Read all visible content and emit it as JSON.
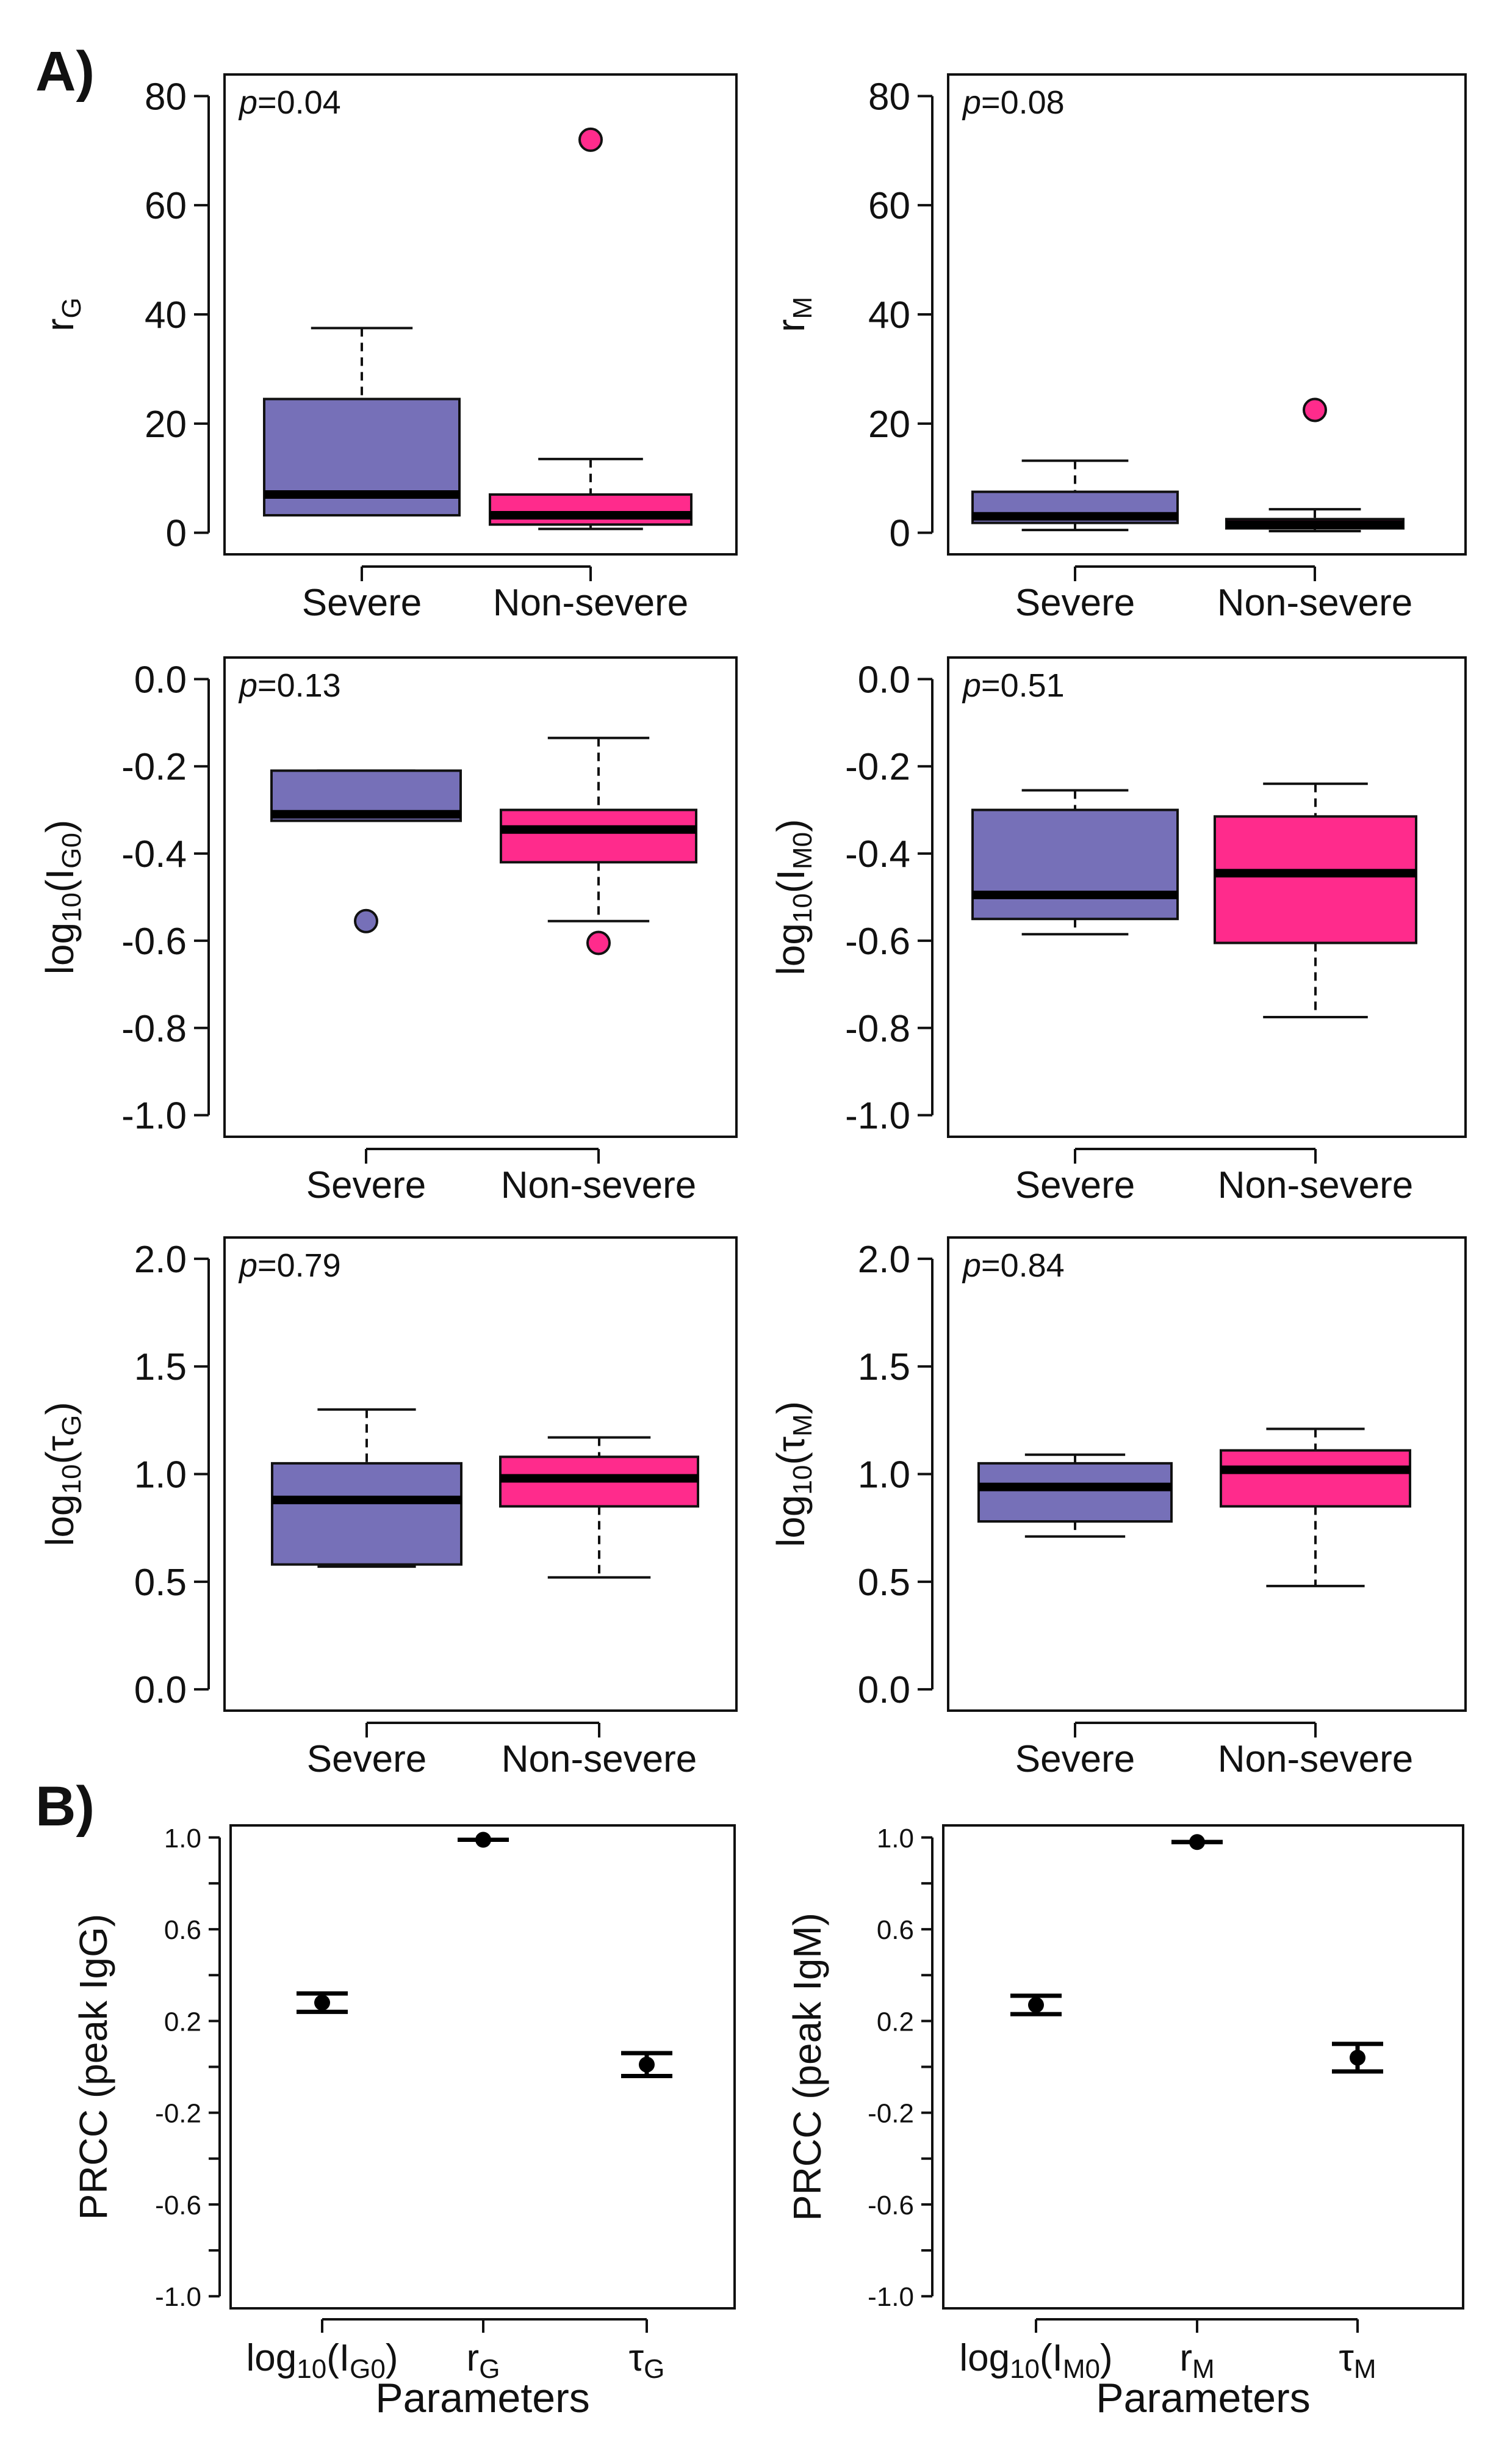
{
  "colors": {
    "severe": "#7670b8",
    "non_severe": "#ff2b8c",
    "point": "#000000"
  },
  "section_labels": {
    "a": "A)",
    "b": "B)"
  },
  "chart_data": [
    {
      "type": "box",
      "id": "rG",
      "panel": "A",
      "ylabel": "r",
      "ylabel_sub": "G",
      "pvalue": "0.04",
      "p_prefix": "p",
      "ylim": [
        0,
        80
      ],
      "yticks": [
        0,
        20,
        40,
        60,
        80
      ],
      "ytick_labels": [
        "0",
        "20",
        "40",
        "60",
        "80"
      ],
      "categories": [
        "Severe",
        "Non-severe"
      ],
      "boxes": [
        {
          "group": "Severe",
          "whisker_low": 3.2,
          "q1": 3.2,
          "median": 7,
          "q3": 24.5,
          "whisker_high": 37.5,
          "outliers": []
        },
        {
          "group": "Non-severe",
          "whisker_low": 0.7,
          "q1": 1.5,
          "median": 3.2,
          "q3": 7,
          "whisker_high": 13.5,
          "outliers": [
            72
          ]
        }
      ]
    },
    {
      "type": "box",
      "id": "rM",
      "panel": "A",
      "ylabel": "r",
      "ylabel_sub": "M",
      "pvalue": "0.08",
      "p_prefix": "p",
      "ylim": [
        0,
        80
      ],
      "yticks": [
        0,
        20,
        40,
        60,
        80
      ],
      "ytick_labels": [
        "0",
        "20",
        "40",
        "60",
        "80"
      ],
      "categories": [
        "Severe",
        "Non-severe"
      ],
      "boxes": [
        {
          "group": "Severe",
          "whisker_low": 0.5,
          "q1": 1.8,
          "median": 3,
          "q3": 7.5,
          "whisker_high": 13.2,
          "outliers": []
        },
        {
          "group": "Non-severe",
          "whisker_low": 0.3,
          "q1": 0.8,
          "median": 1.5,
          "q3": 2.5,
          "whisker_high": 4.3,
          "outliers": [
            22.5
          ]
        }
      ]
    },
    {
      "type": "box",
      "id": "IG0",
      "panel": "A",
      "ylabel": "log",
      "ylabel_sub": "10",
      "ylabel_tail": "(I",
      "ylabel_sub2": "G0",
      "ylabel_end": ")",
      "pvalue": "0.13",
      "p_prefix": "p",
      "ylim": [
        -1.0,
        0.0
      ],
      "yticks": [
        -1.0,
        -0.8,
        -0.6,
        -0.4,
        -0.2,
        0.0
      ],
      "ytick_labels": [
        "-1.0",
        "-0.8",
        "-0.6",
        "-0.4",
        "-0.2",
        "0.0"
      ],
      "categories": [
        "Severe",
        "Non-severe"
      ],
      "boxes": [
        {
          "group": "Severe",
          "whisker_low": -0.325,
          "q1": -0.325,
          "median": -0.31,
          "q3": -0.21,
          "whisker_high": -0.21,
          "outliers": [
            -0.555
          ]
        },
        {
          "group": "Non-severe",
          "whisker_low": -0.555,
          "q1": -0.42,
          "median": -0.345,
          "q3": -0.3,
          "whisker_high": -0.135,
          "outliers": [
            -0.605
          ]
        }
      ]
    },
    {
      "type": "box",
      "id": "IM0",
      "panel": "A",
      "ylabel": "log",
      "ylabel_sub": "10",
      "ylabel_tail": "(I",
      "ylabel_sub2": "M0",
      "ylabel_end": ")",
      "pvalue": "0.51",
      "p_prefix": "p",
      "ylim": [
        -1.0,
        0.0
      ],
      "yticks": [
        -1.0,
        -0.8,
        -0.6,
        -0.4,
        -0.2,
        0.0
      ],
      "ytick_labels": [
        "-1.0",
        "-0.8",
        "-0.6",
        "-0.4",
        "-0.2",
        "0.0"
      ],
      "categories": [
        "Severe",
        "Non-severe"
      ],
      "boxes": [
        {
          "group": "Severe",
          "whisker_low": -0.585,
          "q1": -0.55,
          "median": -0.495,
          "q3": -0.3,
          "whisker_high": -0.255,
          "outliers": []
        },
        {
          "group": "Non-severe",
          "whisker_low": -0.775,
          "q1": -0.605,
          "median": -0.445,
          "q3": -0.315,
          "whisker_high": -0.24,
          "outliers": []
        }
      ]
    },
    {
      "type": "box",
      "id": "tauG",
      "panel": "A",
      "ylabel": "log",
      "ylabel_sub": "10",
      "ylabel_tail": "(τ",
      "ylabel_sub2": "G",
      "ylabel_end": ")",
      "pvalue": "0.79",
      "p_prefix": "p",
      "ylim": [
        0.0,
        2.0
      ],
      "yticks": [
        0.0,
        0.5,
        1.0,
        1.5,
        2.0
      ],
      "ytick_labels": [
        "0.0",
        "0.5",
        "1.0",
        "1.5",
        "2.0"
      ],
      "categories": [
        "Severe",
        "Non-severe"
      ],
      "boxes": [
        {
          "group": "Severe",
          "whisker_low": 0.57,
          "q1": 0.58,
          "median": 0.88,
          "q3": 1.05,
          "whisker_high": 1.3,
          "outliers": []
        },
        {
          "group": "Non-severe",
          "whisker_low": 0.52,
          "q1": 0.85,
          "median": 0.98,
          "q3": 1.08,
          "whisker_high": 1.17,
          "outliers": []
        }
      ]
    },
    {
      "type": "box",
      "id": "tauM",
      "panel": "A",
      "ylabel": "log",
      "ylabel_sub": "10",
      "ylabel_tail": "(τ",
      "ylabel_sub2": "M",
      "ylabel_end": ")",
      "pvalue": "0.84",
      "p_prefix": "p",
      "ylim": [
        0.0,
        2.0
      ],
      "yticks": [
        0.0,
        0.5,
        1.0,
        1.5,
        2.0
      ],
      "ytick_labels": [
        "0.0",
        "0.5",
        "1.0",
        "1.5",
        "2.0"
      ],
      "categories": [
        "Severe",
        "Non-severe"
      ],
      "boxes": [
        {
          "group": "Severe",
          "whisker_low": 0.71,
          "q1": 0.78,
          "median": 0.94,
          "q3": 1.05,
          "whisker_high": 1.09,
          "outliers": []
        },
        {
          "group": "Non-severe",
          "whisker_low": 0.48,
          "q1": 0.85,
          "median": 1.02,
          "q3": 1.11,
          "whisker_high": 1.21,
          "outliers": []
        }
      ]
    },
    {
      "type": "errorbar",
      "id": "prcc_igg",
      "panel": "B",
      "ylabel": "PRCC (peak IgG)",
      "xlabel": "Parameters",
      "ylim": [
        -1.0,
        1.0
      ],
      "yticks": [
        -1.0,
        -0.6,
        -0.2,
        0.2,
        0.6,
        1.0
      ],
      "ytick_labels": [
        "-1.0",
        "-0.6",
        "-0.2",
        "0.2",
        "0.6",
        "1.0"
      ],
      "categories": [
        {
          "main": "log",
          "sub": "10",
          "tail": "(I",
          "sub2": "G0",
          "end": ")"
        },
        {
          "main": "r",
          "sub": "G"
        },
        {
          "main": "τ",
          "sub": "G"
        }
      ],
      "points": [
        {
          "value": 0.28,
          "lower": 0.24,
          "upper": 0.32
        },
        {
          "value": 0.99,
          "lower": 0.99,
          "upper": 0.99
        },
        {
          "value": 0.01,
          "lower": -0.04,
          "upper": 0.06
        }
      ]
    },
    {
      "type": "errorbar",
      "id": "prcc_igm",
      "panel": "B",
      "ylabel": "PRCC (peak IgM)",
      "xlabel": "Parameters",
      "ylim": [
        -1.0,
        1.0
      ],
      "yticks": [
        -1.0,
        -0.6,
        -0.2,
        0.2,
        0.6,
        1.0
      ],
      "ytick_labels": [
        "-1.0",
        "-0.6",
        "-0.2",
        "0.2",
        "0.6",
        "1.0"
      ],
      "categories": [
        {
          "main": "log",
          "sub": "10",
          "tail": "(I",
          "sub2": "M0",
          "end": ")"
        },
        {
          "main": "r",
          "sub": "M"
        },
        {
          "main": "τ",
          "sub": "M"
        }
      ],
      "points": [
        {
          "value": 0.27,
          "lower": 0.23,
          "upper": 0.31
        },
        {
          "value": 0.98,
          "lower": 0.98,
          "upper": 0.98
        },
        {
          "value": 0.04,
          "lower": -0.02,
          "upper": 0.1
        }
      ]
    }
  ]
}
